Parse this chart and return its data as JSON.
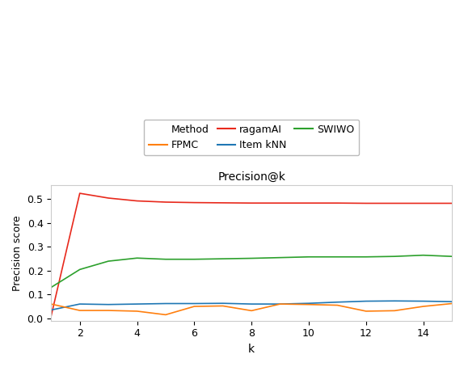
{
  "title": "Precision@k",
  "xlabel": "k",
  "ylabel": "Precision score",
  "xlim": [
    1,
    15
  ],
  "ylim": [
    -0.01,
    0.56
  ],
  "yticks": [
    0.0,
    0.1,
    0.2,
    0.3,
    0.4,
    0.5
  ],
  "xticks": [
    2,
    4,
    6,
    8,
    10,
    12,
    14
  ],
  "k": [
    1,
    2,
    3,
    4,
    5,
    6,
    7,
    8,
    9,
    10,
    11,
    12,
    13,
    14,
    15
  ],
  "ragamAI": [
    0.01,
    0.525,
    0.505,
    0.493,
    0.488,
    0.486,
    0.485,
    0.484,
    0.484,
    0.484,
    0.484,
    0.483,
    0.483,
    0.483,
    0.483
  ],
  "SWIWO": [
    0.13,
    0.205,
    0.24,
    0.253,
    0.248,
    0.248,
    0.25,
    0.252,
    0.255,
    0.258,
    0.258,
    0.258,
    0.26,
    0.265,
    0.26
  ],
  "Item_kNN": [
    0.035,
    0.06,
    0.058,
    0.06,
    0.062,
    0.062,
    0.063,
    0.06,
    0.06,
    0.063,
    0.068,
    0.072,
    0.073,
    0.072,
    0.07
  ],
  "FPMC": [
    0.06,
    0.033,
    0.033,
    0.03,
    0.015,
    0.05,
    0.052,
    0.032,
    0.06,
    0.058,
    0.055,
    0.03,
    0.032,
    0.05,
    0.062
  ],
  "color_ragamAI": "#e8291c",
  "color_SWIWO": "#2ca02c",
  "color_Item_kNN": "#1f77b4",
  "color_FPMC": "#ff7f0e",
  "figsize": [
    5.74,
    4.54
  ],
  "dpi": 100
}
